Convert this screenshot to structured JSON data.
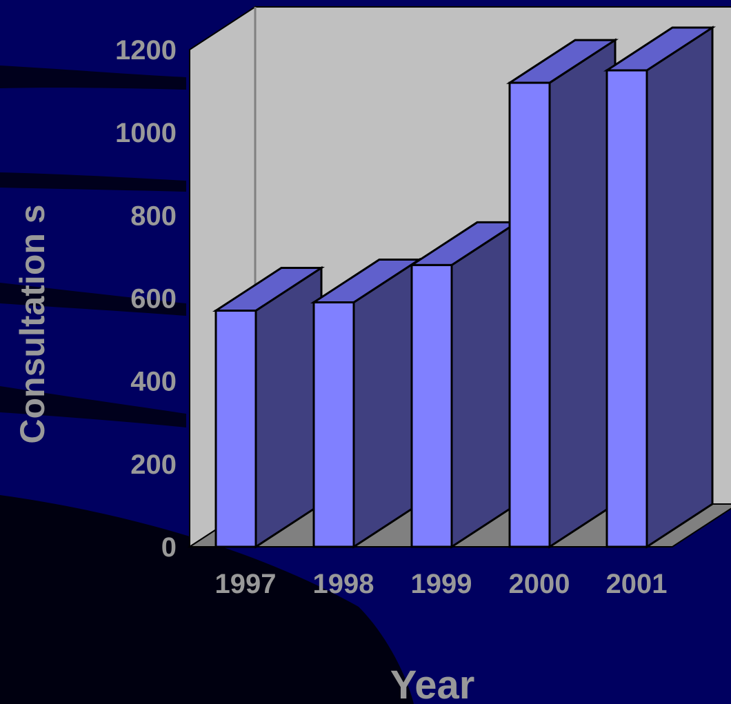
{
  "colors": {
    "slide_background": "#000060",
    "background_swoosh": "#00001c",
    "back_wall": "#c0c0c0",
    "floor": "#808080",
    "bar_front": "#8080ff",
    "bar_top": "#6060cc",
    "bar_side": "#404080",
    "text": "#999999"
  },
  "chart_data": {
    "type": "bar",
    "style": "3d",
    "categories": [
      "1997",
      "1998",
      "1999",
      "2000",
      "2001"
    ],
    "values": [
      570,
      590,
      680,
      1120,
      1150
    ],
    "xlabel": "Year",
    "ylabel": "Consultation s",
    "ylim": [
      0,
      1200
    ],
    "yticks": [
      "0",
      "200",
      "400",
      "600",
      "800",
      "1000",
      "1200"
    ],
    "grid": false,
    "legend": "none"
  }
}
